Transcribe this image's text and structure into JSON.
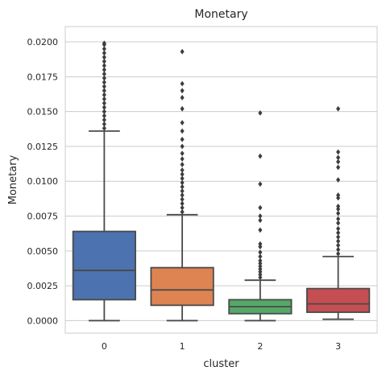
{
  "chart_data": {
    "type": "box",
    "title": "Monetary",
    "xlabel": "cluster",
    "ylabel": "Monetary",
    "ylim": [
      -0.0009,
      0.0211
    ],
    "yticks": [
      "0.0000",
      "0.0025",
      "0.0050",
      "0.0075",
      "0.0100",
      "0.0125",
      "0.0150",
      "0.0175",
      "0.0200"
    ],
    "categories": [
      "0",
      "1",
      "2",
      "3"
    ],
    "grid": "horizontal",
    "colors": [
      "#4c72b0",
      "#dd8452",
      "#55a868",
      "#c44e52"
    ],
    "boxes": [
      {
        "category": "0",
        "whisker_low": 0.0,
        "q1": 0.0015,
        "median": 0.0036,
        "q3": 0.0064,
        "whisker_high": 0.0136,
        "outliers": [
          0.0138,
          0.0141,
          0.0144,
          0.0147,
          0.015,
          0.0153,
          0.0156,
          0.0159,
          0.0162,
          0.0165,
          0.0168,
          0.0171,
          0.0174,
          0.0177,
          0.018,
          0.0183,
          0.0186,
          0.0189,
          0.0192,
          0.0195,
          0.0198,
          0.0199
        ]
      },
      {
        "category": "1",
        "whisker_low": 0.0,
        "q1": 0.0011,
        "median": 0.0022,
        "q3": 0.0038,
        "whisker_high": 0.0076,
        "outliers": [
          0.0078,
          0.0081,
          0.0084,
          0.0087,
          0.009,
          0.0093,
          0.0096,
          0.0099,
          0.0102,
          0.0105,
          0.0108,
          0.0112,
          0.0116,
          0.012,
          0.0125,
          0.013,
          0.0136,
          0.0142,
          0.0152,
          0.016,
          0.0165,
          0.017,
          0.0193
        ]
      },
      {
        "category": "2",
        "whisker_low": 0.0,
        "q1": 0.0005,
        "median": 0.001,
        "q3": 0.0015,
        "whisker_high": 0.0029,
        "outliers": [
          0.0031,
          0.0033,
          0.0035,
          0.0037,
          0.0039,
          0.0041,
          0.0043,
          0.0046,
          0.0049,
          0.0053,
          0.0055,
          0.0065,
          0.0072,
          0.0075,
          0.0081,
          0.0098,
          0.0118,
          0.0149
        ]
      },
      {
        "category": "3",
        "whisker_low": 0.0001,
        "q1": 0.0006,
        "median": 0.0012,
        "q3": 0.0023,
        "whisker_high": 0.0046,
        "outliers": [
          0.0048,
          0.0051,
          0.0054,
          0.0057,
          0.006,
          0.0063,
          0.0066,
          0.007,
          0.0073,
          0.0077,
          0.008,
          0.0082,
          0.0088,
          0.009,
          0.0101,
          0.011,
          0.0114,
          0.0117,
          0.0121,
          0.0152
        ]
      }
    ]
  }
}
